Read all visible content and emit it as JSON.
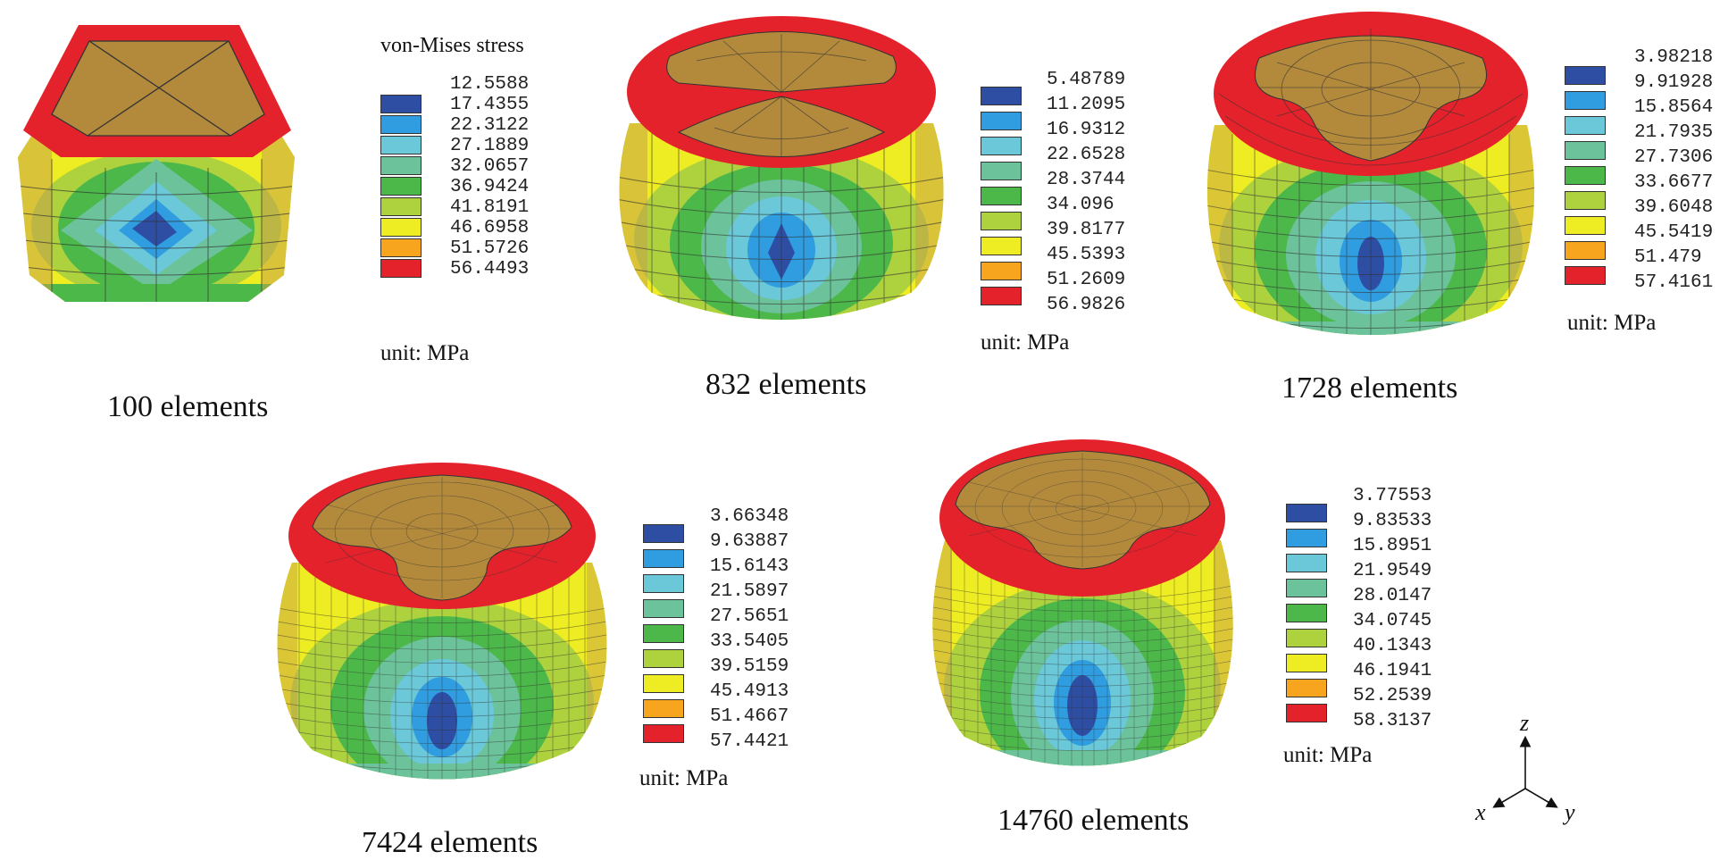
{
  "legend_title": "von-Mises stress",
  "unit_label": "unit: MPa",
  "contour_colors": [
    "#2e4ea3",
    "#2f9de0",
    "#6ac8d8",
    "#6cc39b",
    "#4cb84a",
    "#aed13e",
    "#eeec22",
    "#f7a41f",
    "#e4222b"
  ],
  "cap_color": "#b38a3c",
  "mesh_color": "#333333",
  "axes": {
    "z": "z",
    "x": "x",
    "y": "y"
  },
  "models": [
    {
      "caption": "100 elements",
      "values": [
        "12.5588",
        "17.4355",
        "22.3122",
        "27.1889",
        "32.0657",
        "36.9424",
        "41.8191",
        "46.6958",
        "51.5726",
        "56.4493"
      ]
    },
    {
      "caption": "832 elements",
      "values": [
        "5.48789",
        "11.2095",
        "16.9312",
        "22.6528",
        "28.3744",
        "34.096",
        "39.8177",
        "45.5393",
        "51.2609",
        "56.9826"
      ]
    },
    {
      "caption": "1728 elements",
      "values": [
        "3.98218",
        "9.91928",
        "15.8564",
        "21.7935",
        "27.7306",
        "33.6677",
        "39.6048",
        "45.5419",
        "51.479",
        "57.4161"
      ]
    },
    {
      "caption": "7424 elements",
      "values": [
        "3.66348",
        "9.63887",
        "15.6143",
        "21.5897",
        "27.5651",
        "33.5405",
        "39.5159",
        "45.4913",
        "51.4667",
        "57.4421"
      ]
    },
    {
      "caption": "14760 elements",
      "values": [
        "3.77553",
        "9.83533",
        "15.8951",
        "21.9549",
        "28.0147",
        "34.0745",
        "40.1343",
        "46.1941",
        "52.2539",
        "58.3137"
      ]
    }
  ]
}
